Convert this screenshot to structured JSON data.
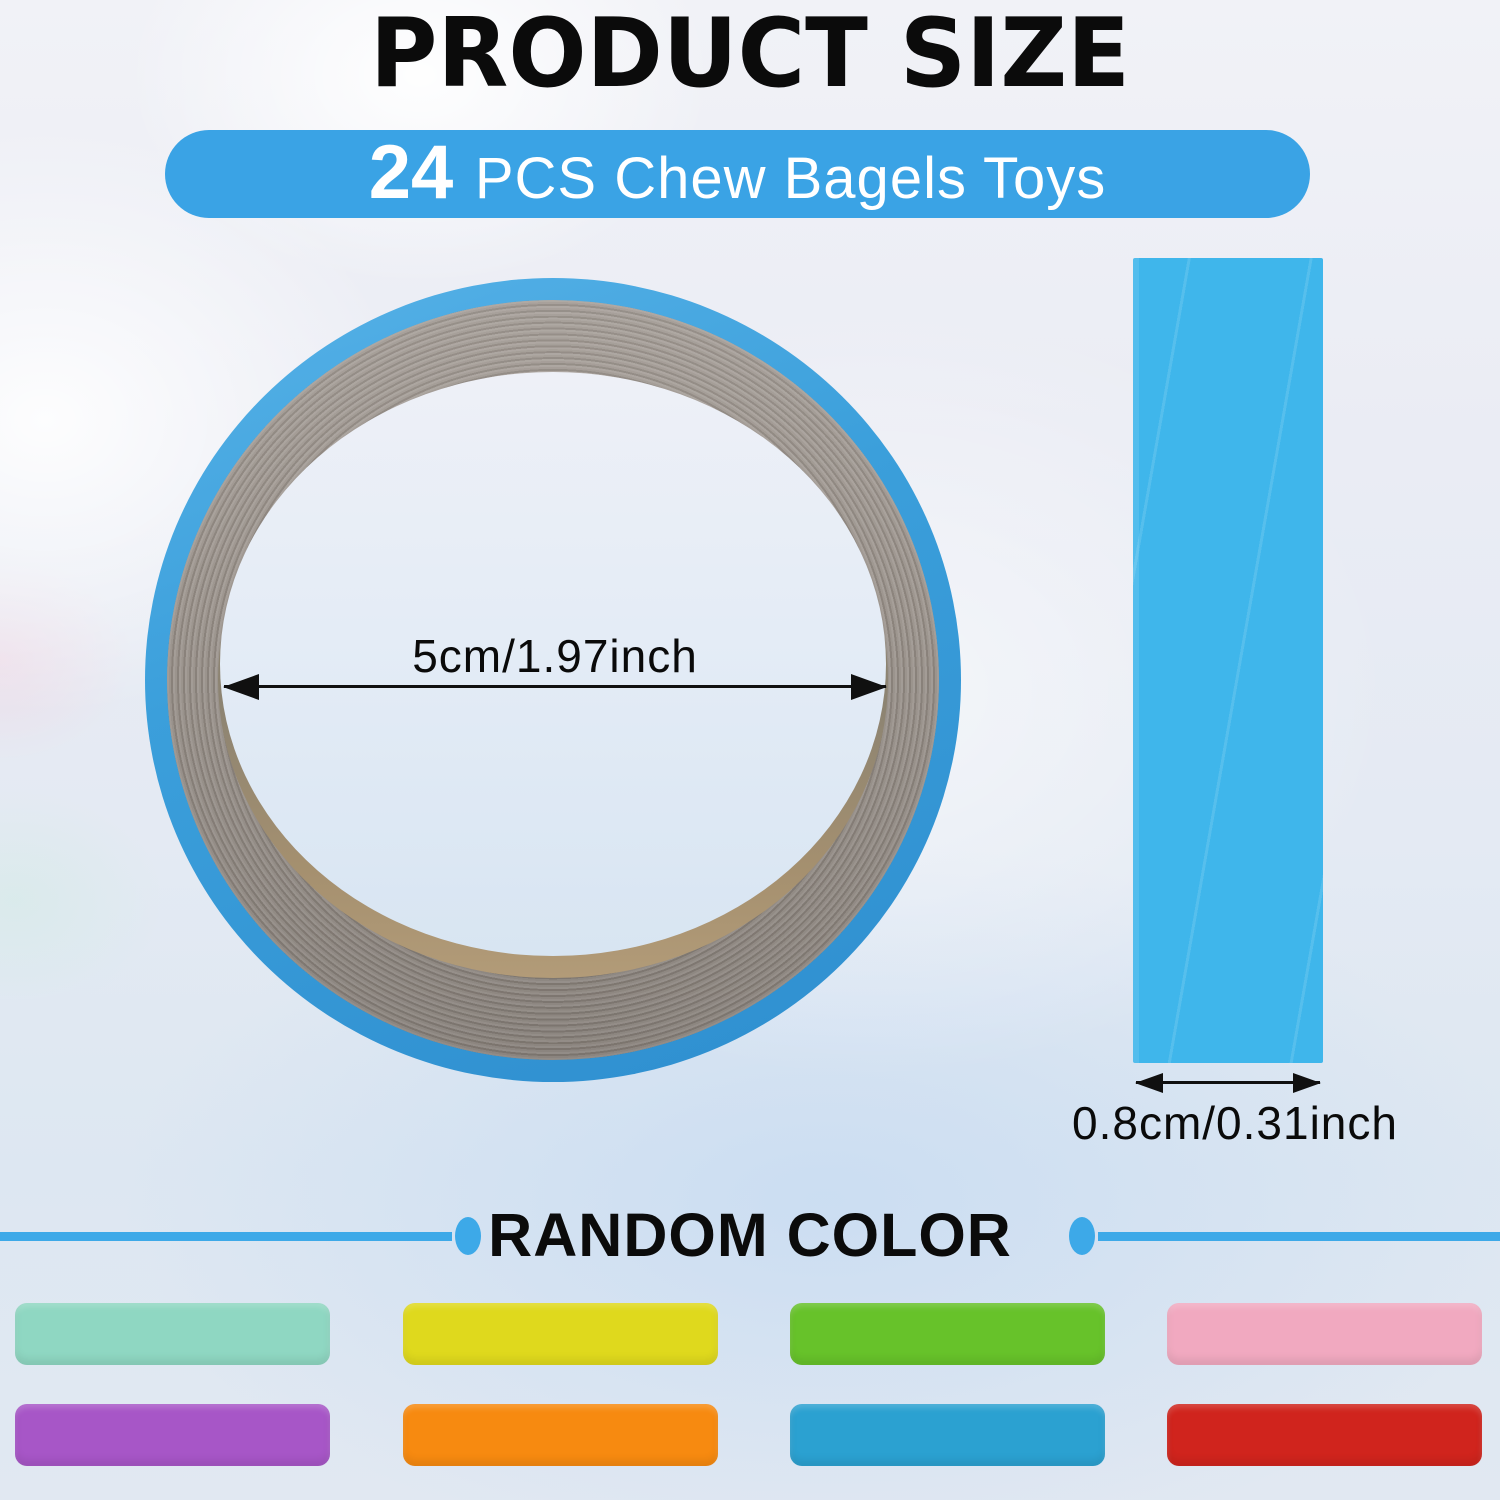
{
  "title": "PRODUCT SIZE",
  "banner": {
    "count": "24",
    "label": "PCS Chew Bagels Toys",
    "bg": "#3aa3e5"
  },
  "ring": {
    "diameter_label": "5cm/1.97inch",
    "rim_color": "#3b9fdb",
    "band_color": "#99918a"
  },
  "strip": {
    "width_label": "0.8cm/0.31inch",
    "color": "#3fb6eb"
  },
  "random_color": {
    "heading": "RANDOM COLOR",
    "line_color": "#3da9e8"
  },
  "swatches": [
    {
      "name": "teal",
      "color": "#8fd7c2"
    },
    {
      "name": "yellow",
      "color": "#dfd91d"
    },
    {
      "name": "green",
      "color": "#67c22a"
    },
    {
      "name": "pink",
      "color": "#f1a9c0"
    },
    {
      "name": "purple",
      "color": "#a756c7"
    },
    {
      "name": "orange",
      "color": "#f78a10"
    },
    {
      "name": "blue",
      "color": "#2ba1d1"
    },
    {
      "name": "red",
      "color": "#d0241d"
    }
  ]
}
